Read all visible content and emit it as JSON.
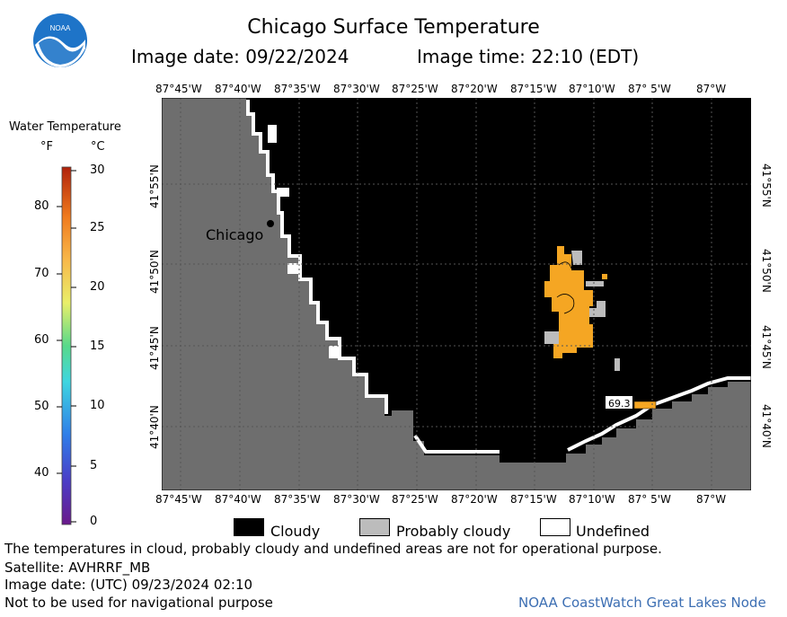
{
  "header": {
    "title": "Chicago Surface Temperature",
    "image_date": "Image date: 09/22/2024",
    "image_time": "Image time: 22:10 (EDT)"
  },
  "logo": {
    "text": "NOAA"
  },
  "colorbar": {
    "title": "Water Temperature",
    "unit_f": "°F",
    "unit_c": "°C",
    "f_ticks": [
      "80",
      "70",
      "60",
      "50",
      "40"
    ],
    "c_ticks": [
      "30",
      "25",
      "20",
      "15",
      "10",
      "5",
      "0"
    ],
    "range_c": [
      0,
      30
    ]
  },
  "map": {
    "lon_labels": [
      "87°45'W",
      "87°40'W",
      "87°35'W",
      "87°30'W",
      "87°25'W",
      "87°20'W",
      "87°15'W",
      "87°10'W",
      "87° 5'W",
      "87°W"
    ],
    "lat_labels": [
      "41°55'N",
      "41°50'N",
      "41°45'N",
      "41°40'N"
    ],
    "city_label": "Chicago",
    "temp_value_label": "69.3",
    "colors": {
      "land": "#6e6e6e",
      "cloudy": "#000000",
      "probably_cloudy": "#bcbcbc",
      "undefined": "#ffffff",
      "warm_water": "#f5a623"
    }
  },
  "legend": {
    "cloudy": "Cloudy",
    "probably_cloudy": "Probably cloudy",
    "undefined": "Undefined"
  },
  "footer": {
    "disclaimer": "The temperatures in cloud, probably cloudy and undefined areas are not for operational purpose.",
    "satellite": "Satellite: AVHRRF_MB",
    "utc_date": "Image date: (UTC) 09/23/2024  02:10",
    "nav_warning": "Not to be used for navigational purpose",
    "credit": "NOAA CoastWatch Great Lakes Node"
  }
}
